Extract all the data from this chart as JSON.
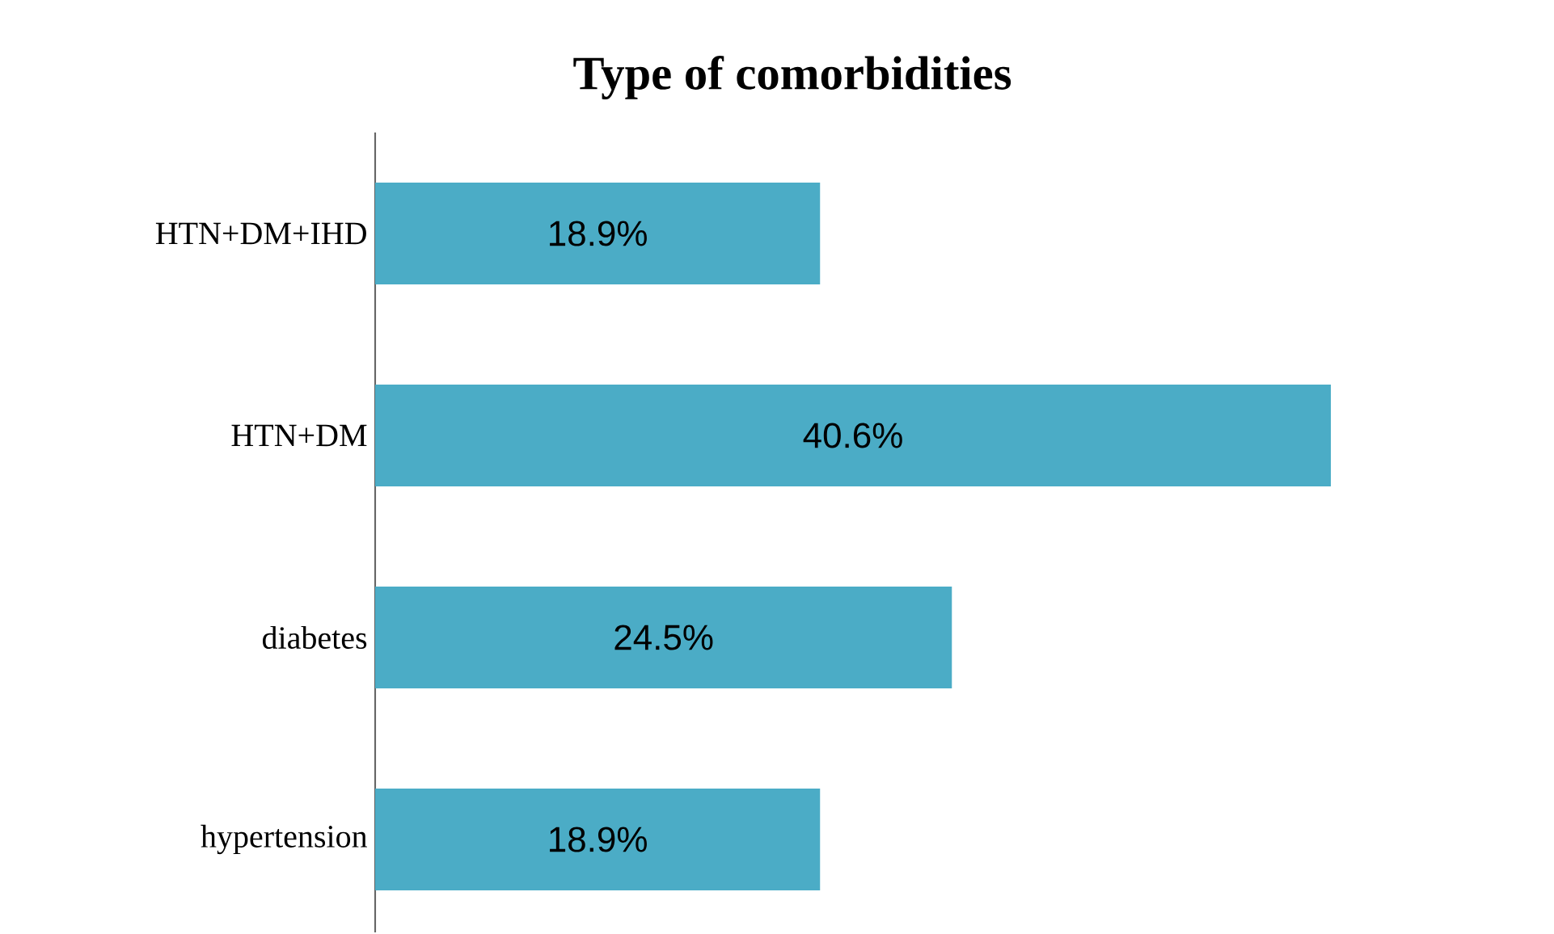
{
  "chart_data": {
    "type": "bar",
    "orientation": "horizontal",
    "title": "Type of comorbidities",
    "categories": [
      "HTN+DM+IHD",
      "HTN+DM",
      "diabetes",
      "hypertension"
    ],
    "values": [
      18.9,
      40.6,
      24.5,
      18.9
    ],
    "value_labels": [
      "18.9%",
      "40.6%",
      "24.5%",
      "18.9%"
    ],
    "color": "#4bacc6"
  }
}
